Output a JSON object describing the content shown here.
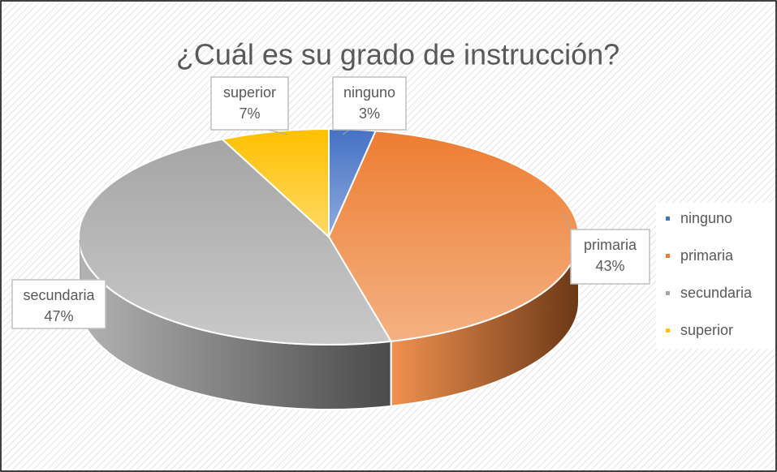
{
  "chart_data": {
    "type": "pie",
    "title": "¿Cuál es su grado de instrucción?",
    "categories": [
      "ninguno",
      "primaria",
      "secundaria",
      "superior"
    ],
    "values": [
      3,
      43,
      47,
      7
    ],
    "value_labels": [
      "3%",
      "43%",
      "47%",
      "7%"
    ],
    "colors": [
      "#4472c4",
      "#ed7d31",
      "#a5a5a5",
      "#ffc000"
    ],
    "legend": "right"
  }
}
